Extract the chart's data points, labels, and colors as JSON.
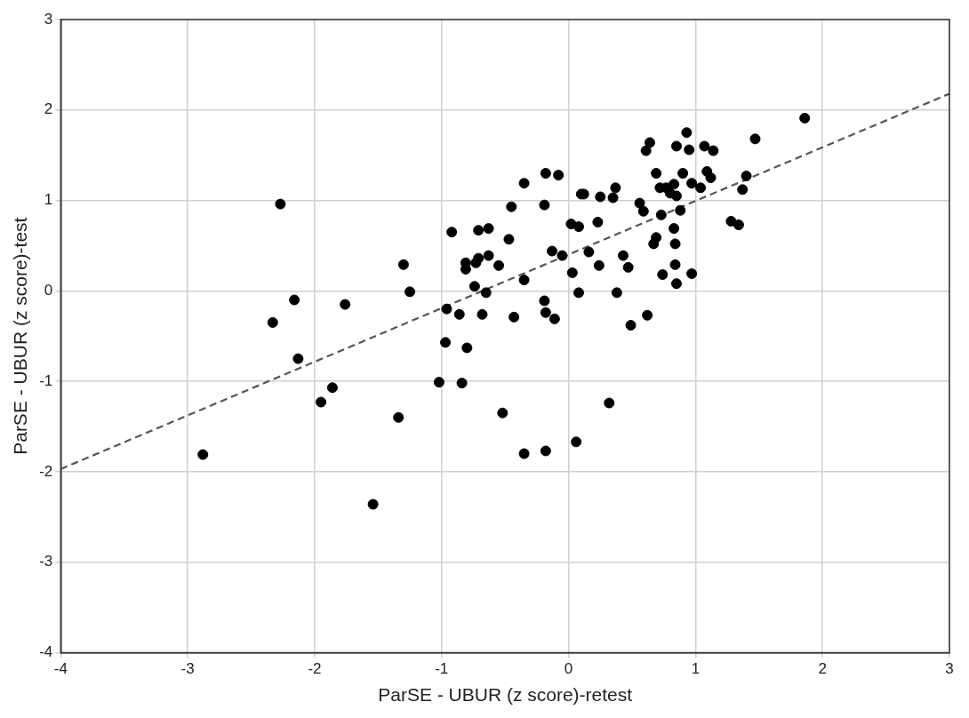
{
  "chart_data": {
    "type": "scatter",
    "xlabel": "ParSE - UBUR (z score)-retest",
    "ylabel": "ParSE - UBUR (z score)-test",
    "xlim": [
      -4,
      3
    ],
    "ylim": [
      -4,
      3
    ],
    "xticks": [
      -4,
      -3,
      -2,
      -1,
      0,
      1,
      2,
      3
    ],
    "yticks": [
      -4,
      -3,
      -2,
      -1,
      0,
      1,
      2,
      3
    ],
    "grid": true,
    "legend": false,
    "series": [
      {
        "type": "scatter",
        "color": "#000000",
        "marker": "circle",
        "x": [
          0.93,
          0.64,
          0.61,
          0.85,
          0.95,
          1.07,
          1.14,
          1.47,
          0.69,
          0.9,
          1.09,
          1.12,
          1.4,
          1.37,
          0.72,
          0.77,
          0.83,
          0.8,
          0.85,
          0.97,
          1.04,
          0.56,
          0.59,
          0.73,
          0.88,
          1.28,
          1.34,
          0.83,
          0.69,
          0.67,
          0.84,
          0.84,
          0.74,
          0.85,
          0.97,
          0.47,
          0.62,
          0.49,
          1.86,
          -0.18,
          -0.08,
          -0.35,
          0.1,
          0.12,
          0.25,
          0.37,
          0.35,
          -0.45,
          -0.19,
          0.02,
          0.08,
          0.23,
          -0.92,
          -0.71,
          -0.63,
          -0.47,
          -0.13,
          -0.05,
          0.16,
          0.43,
          -1.3,
          -0.81,
          -0.81,
          -0.71,
          -0.73,
          -0.63,
          -0.55,
          0.03,
          0.24,
          -1.25,
          -0.74,
          -0.65,
          -0.35,
          0.08,
          0.38,
          -0.96,
          -0.86,
          -0.68,
          -0.43,
          -0.19,
          -0.18,
          -0.11,
          -0.97,
          -0.8,
          -1.02,
          -0.84,
          -1.34,
          -0.52,
          0.32,
          0.06,
          -0.35,
          -0.18,
          -2.27,
          -2.16,
          -1.76,
          -2.33,
          -2.13,
          -1.86,
          -1.95,
          -2.88,
          -1.54
        ],
        "values": [
          1.75,
          1.64,
          1.55,
          1.6,
          1.56,
          1.6,
          1.55,
          1.68,
          1.3,
          1.3,
          1.32,
          1.25,
          1.27,
          1.12,
          1.14,
          1.14,
          1.18,
          1.08,
          1.05,
          1.19,
          1.14,
          0.97,
          0.88,
          0.84,
          0.89,
          0.77,
          0.73,
          0.69,
          0.59,
          0.52,
          0.52,
          0.29,
          0.18,
          0.08,
          0.19,
          0.26,
          -0.27,
          -0.38,
          1.91,
          1.3,
          1.28,
          1.19,
          1.07,
          1.07,
          1.04,
          1.14,
          1.03,
          0.93,
          0.95,
          0.74,
          0.71,
          0.76,
          0.65,
          0.67,
          0.69,
          0.57,
          0.44,
          0.39,
          0.43,
          0.39,
          0.29,
          0.31,
          0.24,
          0.36,
          0.31,
          0.39,
          0.28,
          0.2,
          0.28,
          -0.01,
          0.05,
          -0.02,
          0.12,
          -0.02,
          -0.02,
          -0.2,
          -0.26,
          -0.26,
          -0.29,
          -0.11,
          -0.24,
          -0.31,
          -0.57,
          -0.63,
          -1.01,
          -1.02,
          -1.4,
          -1.35,
          -1.24,
          -1.67,
          -1.8,
          -1.77,
          0.96,
          -0.1,
          -0.15,
          -0.35,
          -0.75,
          -1.07,
          -1.23,
          -1.81,
          -2.36
        ]
      },
      {
        "type": "line",
        "color": "#555555",
        "marker": "none",
        "line_style": "dashed",
        "x": [
          -4,
          3
        ],
        "values": [
          -1.97,
          2.18
        ]
      }
    ]
  }
}
